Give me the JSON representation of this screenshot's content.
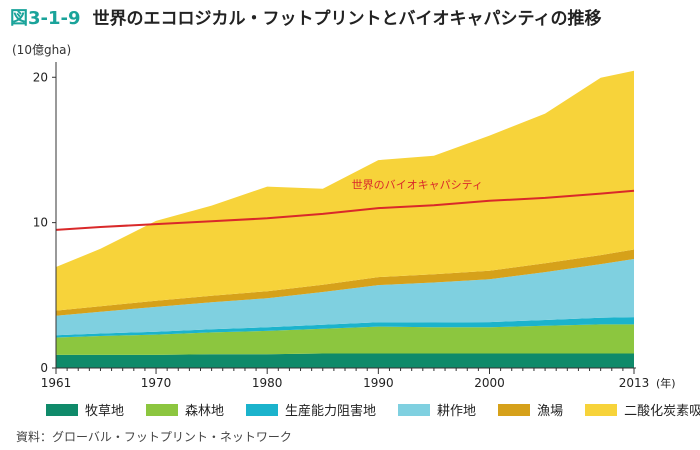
{
  "header": {
    "figure_number": "図3-1-9",
    "title": "世界のエコロジカル・フットプリントとバイオキャパシティの推移"
  },
  "source": "資料：グローバル・フットプリント・ネットワーク",
  "chart_data": {
    "type": "area",
    "stacked": true,
    "unit_label": "(10億gha)",
    "x": [
      1961,
      1965,
      1970,
      1975,
      1980,
      1985,
      1990,
      1995,
      2000,
      2005,
      2010,
      2013
    ],
    "x_ticks": [
      "1961",
      "1970",
      "1980",
      "1990",
      "2000",
      "2013"
    ],
    "x_tick_values": [
      1961,
      1970,
      1980,
      1990,
      2000,
      2013
    ],
    "x_suffix": "(年)",
    "ylim": [
      0,
      20.5
    ],
    "y_ticks": [
      0,
      10,
      20
    ],
    "series": [
      {
        "name": "牧草地",
        "color": "#0f8a6a",
        "values": [
          0.9,
          0.9,
          0.9,
          0.95,
          0.95,
          1.0,
          1.0,
          1.0,
          1.0,
          1.0,
          1.0,
          1.0
        ]
      },
      {
        "name": "森林地",
        "color": "#8cc63f",
        "values": [
          1.2,
          1.3,
          1.4,
          1.5,
          1.6,
          1.7,
          1.85,
          1.8,
          1.8,
          1.9,
          2.0,
          2.0
        ]
      },
      {
        "name": "生産能力阻害地",
        "color": "#1bb3cc",
        "values": [
          0.15,
          0.17,
          0.2,
          0.22,
          0.25,
          0.28,
          0.3,
          0.33,
          0.36,
          0.4,
          0.45,
          0.5
        ]
      },
      {
        "name": "耕作地",
        "color": "#7fd0e0",
        "values": [
          1.35,
          1.5,
          1.7,
          1.85,
          2.0,
          2.25,
          2.55,
          2.75,
          2.95,
          3.3,
          3.7,
          4.0
        ]
      },
      {
        "name": "漁場",
        "color": "#d6a11a",
        "values": [
          0.35,
          0.38,
          0.42,
          0.45,
          0.48,
          0.5,
          0.55,
          0.57,
          0.58,
          0.6,
          0.62,
          0.65
        ]
      },
      {
        "name": "二酸化炭素吸収地",
        "color": "#f7d33a",
        "values": [
          3.0,
          3.95,
          5.5,
          6.2,
          7.2,
          6.6,
          8.05,
          8.15,
          9.3,
          10.3,
          12.2,
          12.3
        ]
      }
    ],
    "line_series": {
      "name": "バイオキャパシティ",
      "label": "世界のバイオキャパシティ",
      "color": "#d9292a",
      "values": [
        9.5,
        9.7,
        9.9,
        10.1,
        10.3,
        10.6,
        11.0,
        11.2,
        11.5,
        11.7,
        12.0,
        12.2
      ]
    },
    "grid": false
  }
}
